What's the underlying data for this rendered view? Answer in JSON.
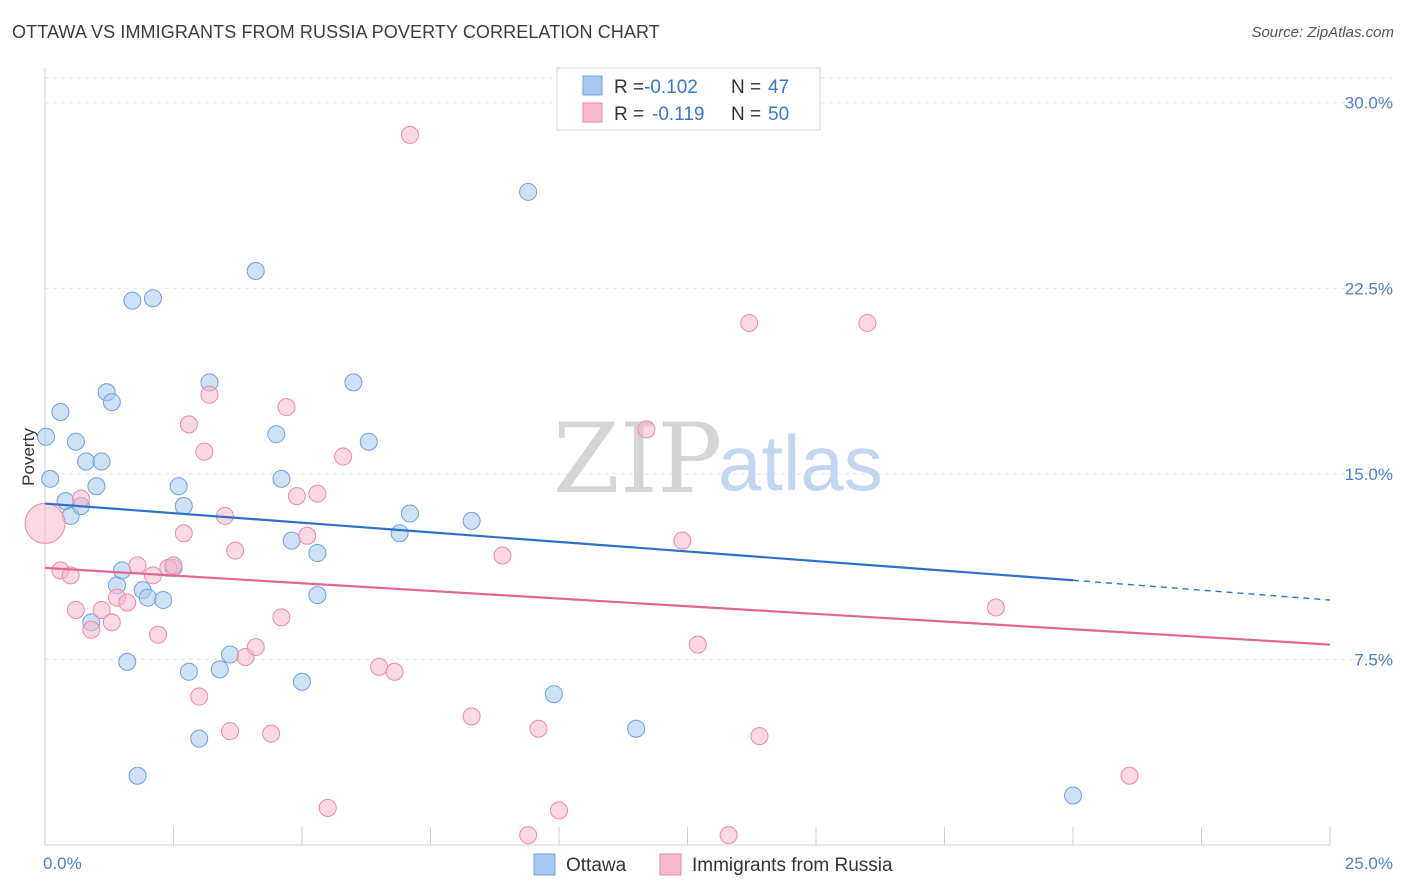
{
  "header": {
    "title": "OTTAWA VS IMMIGRANTS FROM RUSSIA POVERTY CORRELATION CHART",
    "source": "Source: ZipAtlas.com"
  },
  "watermark": {
    "zip": "ZIP",
    "atlas": "atlas"
  },
  "legend_top": {
    "rows": [
      {
        "r_label": "R = ",
        "r_value": "-0.102",
        "n_label": "N = ",
        "n_value": "47",
        "color": "#a8c8f0"
      },
      {
        "r_label": "R = ",
        "r_value": "-0.119",
        "n_label": "N = ",
        "n_value": "50",
        "color": "#f8b8cc"
      }
    ]
  },
  "legend_bottom": {
    "items": [
      {
        "label": "Ottawa",
        "color": "#a8c8f0"
      },
      {
        "label": "Immigrants from Russia",
        "color": "#f8b8cc"
      }
    ]
  },
  "chart_data": {
    "type": "scatter",
    "title": "OTTAWA VS IMMIGRANTS FROM RUSSIA POVERTY CORRELATION CHART",
    "xlabel": "",
    "ylabel": "Poverty",
    "xlim": [
      0,
      25
    ],
    "ylim": [
      0,
      31
    ],
    "x_tick_labels": [
      "0.0%",
      "25.0%"
    ],
    "y_ticks": [
      7.5,
      15.0,
      22.5,
      30.0
    ],
    "y_tick_labels": [
      "7.5%",
      "15.0%",
      "22.5%",
      "30.0%"
    ],
    "grid": true,
    "legend_position": "top-center",
    "series": [
      {
        "name": "Ottawa",
        "color": "#a8c8f0",
        "stroke": "#6f9fe0",
        "trend_color": "#2f6fcc",
        "trend": {
          "x0": 0,
          "y0": 13.8,
          "x1": 20,
          "y1": 10.7,
          "dash_to": 25,
          "dash_y": 9.9
        },
        "points": [
          [
            0.1,
            14.8
          ],
          [
            0.3,
            17.5
          ],
          [
            0.4,
            13.9
          ],
          [
            0.5,
            13.3
          ],
          [
            0.6,
            16.3
          ],
          [
            0.7,
            13.7
          ],
          [
            0.8,
            15.5
          ],
          [
            0.9,
            9.0
          ],
          [
            1.0,
            14.5
          ],
          [
            1.1,
            15.5
          ],
          [
            1.2,
            18.3
          ],
          [
            1.3,
            17.9
          ],
          [
            1.4,
            10.5
          ],
          [
            1.5,
            11.1
          ],
          [
            1.6,
            7.4
          ],
          [
            1.7,
            22.0
          ],
          [
            1.8,
            2.8
          ],
          [
            1.9,
            10.3
          ],
          [
            2.0,
            10.0
          ],
          [
            2.1,
            22.1
          ],
          [
            2.3,
            9.9
          ],
          [
            2.5,
            11.2
          ],
          [
            2.6,
            14.5
          ],
          [
            2.7,
            13.7
          ],
          [
            2.8,
            7.0
          ],
          [
            3.0,
            4.3
          ],
          [
            3.2,
            18.7
          ],
          [
            3.4,
            7.1
          ],
          [
            3.6,
            7.7
          ],
          [
            4.1,
            23.2
          ],
          [
            4.5,
            16.6
          ],
          [
            4.6,
            14.8
          ],
          [
            4.8,
            12.3
          ],
          [
            5.0,
            6.6
          ],
          [
            5.3,
            10.1
          ],
          [
            5.3,
            11.8
          ],
          [
            6.0,
            18.7
          ],
          [
            6.3,
            16.3
          ],
          [
            6.9,
            12.6
          ],
          [
            7.1,
            13.4
          ],
          [
            8.3,
            13.1
          ],
          [
            9.4,
            26.4
          ],
          [
            9.9,
            6.1
          ],
          [
            11.5,
            4.7
          ],
          [
            11.8,
            29.6
          ],
          [
            20.0,
            2.0
          ],
          [
            0.02,
            16.5
          ]
        ]
      },
      {
        "name": "Immigrants from Russia",
        "color": "#f8b8cc",
        "stroke": "#e88aa8",
        "trend_color": "#e06890",
        "trend": {
          "x0": 0,
          "y0": 11.2,
          "x1": 25,
          "y1": 8.1
        },
        "points": [
          [
            0.0,
            13.0
          ],
          [
            0.3,
            11.1
          ],
          [
            0.5,
            10.9
          ],
          [
            0.6,
            9.5
          ],
          [
            0.7,
            14.0
          ],
          [
            0.9,
            8.7
          ],
          [
            1.1,
            9.5
          ],
          [
            1.3,
            9.0
          ],
          [
            1.4,
            10.0
          ],
          [
            1.6,
            9.8
          ],
          [
            1.8,
            11.3
          ],
          [
            2.1,
            10.9
          ],
          [
            2.2,
            8.5
          ],
          [
            2.4,
            11.2
          ],
          [
            2.5,
            11.3
          ],
          [
            2.7,
            12.6
          ],
          [
            2.8,
            17.0
          ],
          [
            3.0,
            6.0
          ],
          [
            3.1,
            15.9
          ],
          [
            3.2,
            18.2
          ],
          [
            3.5,
            13.3
          ],
          [
            3.6,
            4.6
          ],
          [
            3.7,
            11.9
          ],
          [
            3.9,
            7.6
          ],
          [
            4.1,
            8.0
          ],
          [
            4.4,
            4.5
          ],
          [
            4.6,
            9.2
          ],
          [
            4.7,
            17.7
          ],
          [
            4.9,
            14.1
          ],
          [
            5.1,
            12.5
          ],
          [
            5.3,
            14.2
          ],
          [
            5.5,
            1.5
          ],
          [
            5.8,
            15.7
          ],
          [
            6.5,
            7.2
          ],
          [
            6.8,
            7.0
          ],
          [
            7.1,
            28.7
          ],
          [
            8.3,
            5.2
          ],
          [
            8.9,
            11.7
          ],
          [
            9.4,
            0.4
          ],
          [
            9.6,
            4.7
          ],
          [
            10.0,
            1.4
          ],
          [
            11.7,
            16.8
          ],
          [
            12.4,
            12.3
          ],
          [
            12.7,
            8.1
          ],
          [
            13.3,
            0.4
          ],
          [
            13.7,
            21.1
          ],
          [
            13.9,
            4.4
          ],
          [
            16.0,
            21.1
          ],
          [
            18.5,
            9.6
          ],
          [
            21.1,
            2.8
          ]
        ]
      }
    ]
  }
}
